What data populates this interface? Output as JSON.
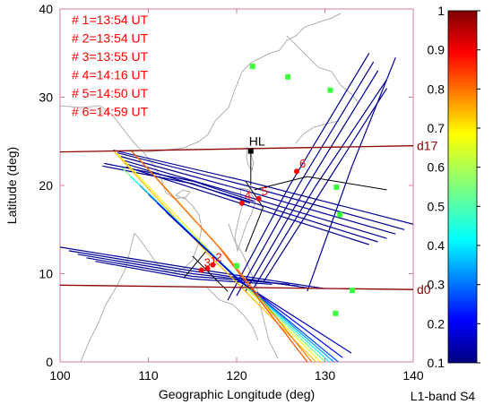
{
  "chart_data": {
    "type": "scatter",
    "xlabel": "Geographic Longitude (deg)",
    "ylabel": "Latitude (deg)",
    "xlim": [
      100,
      140
    ],
    "ylim": [
      0,
      40
    ],
    "x_ticks": [
      100,
      110,
      120,
      130,
      140
    ],
    "y_ticks": [
      0,
      10,
      20,
      30,
      40
    ],
    "grid": false,
    "colorbar": {
      "label": "L1-band S4",
      "range": [
        0.1,
        1
      ],
      "ticks": [
        0.1,
        0.2,
        0.3,
        0.4,
        0.5,
        0.6,
        0.7,
        0.8,
        0.9,
        1
      ],
      "tick_labels": [
        "0.1",
        "0.2",
        "0.3",
        "0.4",
        "0.5",
        "0.6",
        "0.7",
        "0.8",
        "0.9",
        "1"
      ],
      "colormap": "jet"
    },
    "event_legend": [
      "# 1=13:54 UT",
      "# 2=13:54 UT",
      "# 3=13:55 UT",
      "# 4=14:16 UT",
      "# 5=14:50 UT",
      "# 6=14:59 UT"
    ],
    "event_markers": [
      {
        "label": "1",
        "lon": 116.7,
        "lat": 10.6
      },
      {
        "label": "2",
        "lon": 117.3,
        "lat": 11.0
      },
      {
        "label": "3",
        "lon": 116.0,
        "lat": 10.4
      },
      {
        "label": "4",
        "lon": 120.6,
        "lat": 18.0
      },
      {
        "label": "5",
        "lon": 122.5,
        "lat": 18.5
      },
      {
        "label": "6",
        "lon": 126.8,
        "lat": 21.6
      }
    ],
    "reference_lines": [
      {
        "label": "d17",
        "points": [
          [
            100,
            23.8
          ],
          [
            140,
            24.5
          ]
        ],
        "color": "#8b0000"
      },
      {
        "label": "d0",
        "points": [
          [
            100,
            8.7
          ],
          [
            140,
            8.2
          ]
        ],
        "color": "#8b0000"
      }
    ],
    "station": {
      "label": "HL",
      "lon": 121.6,
      "lat": 23.9
    },
    "ground_sites": [
      {
        "lon": 121.8,
        "lat": 33.5
      },
      {
        "lon": 125.8,
        "lat": 32.3
      },
      {
        "lon": 130.6,
        "lat": 30.8
      },
      {
        "lon": 131.3,
        "lat": 19.8
      },
      {
        "lon": 131.7,
        "lat": 16.7
      },
      {
        "lon": 133.1,
        "lat": 8.1
      },
      {
        "lon": 131.2,
        "lat": 5.5
      },
      {
        "lon": 120.0,
        "lat": 10.9
      }
    ],
    "series": [
      {
        "group": "north-band",
        "s4": 0.12,
        "points": [
          [
            106.0,
            24.0
          ],
          [
            121.0,
            20.5
          ],
          [
            140.0,
            15.6
          ]
        ]
      },
      {
        "group": "north-band",
        "s4": 0.12,
        "points": [
          [
            106.5,
            23.7
          ],
          [
            121.0,
            20.0
          ],
          [
            139.0,
            15.0
          ]
        ]
      },
      {
        "group": "north-band",
        "s4": 0.12,
        "points": [
          [
            106.8,
            23.3
          ],
          [
            121.0,
            19.4
          ],
          [
            138.0,
            14.5
          ]
        ]
      },
      {
        "group": "north-band",
        "s4": 0.12,
        "points": [
          [
            107.0,
            22.9
          ],
          [
            121.0,
            18.8
          ],
          [
            137.0,
            14.0
          ]
        ]
      },
      {
        "group": "north-band",
        "s4": 0.12,
        "points": [
          [
            107.3,
            22.5
          ],
          [
            121.0,
            18.3
          ],
          [
            136.0,
            13.6
          ]
        ]
      },
      {
        "group": "north-band",
        "s4": 0.12,
        "points": [
          [
            107.5,
            22.1
          ],
          [
            121.0,
            17.8
          ],
          [
            135.0,
            13.3
          ]
        ]
      },
      {
        "group": "north-band",
        "s4": 0.12,
        "points": [
          [
            105.0,
            22.5
          ],
          [
            115.0,
            20.5
          ],
          [
            122.0,
            18.2
          ]
        ]
      },
      {
        "group": "north-band",
        "s4": 0.12,
        "points": [
          [
            104.8,
            22.2
          ],
          [
            115.0,
            20.2
          ],
          [
            121.5,
            18.0
          ]
        ]
      },
      {
        "group": "mid-band",
        "s4": 0.12,
        "points": [
          [
            100.0,
            13.0
          ],
          [
            115.0,
            10.6
          ],
          [
            130.0,
            8.3
          ]
        ]
      },
      {
        "group": "mid-band",
        "s4": 0.12,
        "points": [
          [
            101.0,
            12.6
          ],
          [
            115.0,
            10.3
          ],
          [
            128.0,
            8.4
          ]
        ]
      },
      {
        "group": "mid-band",
        "s4": 0.12,
        "points": [
          [
            102.0,
            12.2
          ],
          [
            115.0,
            10.0
          ],
          [
            127.0,
            8.6
          ]
        ]
      },
      {
        "group": "mid-band",
        "s4": 0.12,
        "points": [
          [
            103.0,
            11.8
          ],
          [
            115.0,
            9.7
          ],
          [
            126.0,
            8.8
          ]
        ]
      },
      {
        "group": "mid-band",
        "s4": 0.12,
        "points": [
          [
            104.0,
            11.4
          ],
          [
            115.0,
            9.4
          ],
          [
            124.0,
            8.8
          ]
        ]
      },
      {
        "group": "ne-band",
        "s4": 0.12,
        "points": [
          [
            119.0,
            7.0
          ],
          [
            126.0,
            20.0
          ],
          [
            135.0,
            35.0
          ]
        ]
      },
      {
        "group": "ne-band",
        "s4": 0.12,
        "points": [
          [
            120.0,
            7.5
          ],
          [
            127.0,
            20.0
          ],
          [
            135.5,
            34.0
          ]
        ]
      },
      {
        "group": "ne-band",
        "s4": 0.12,
        "points": [
          [
            121.0,
            8.0
          ],
          [
            128.0,
            20.0
          ],
          [
            136.0,
            33.0
          ]
        ]
      },
      {
        "group": "ne-band",
        "s4": 0.12,
        "points": [
          [
            122.0,
            8.5
          ],
          [
            129.0,
            20.0
          ],
          [
            137.0,
            32.0
          ]
        ]
      },
      {
        "group": "ne-band",
        "s4": 0.12,
        "points": [
          [
            123.0,
            9.0
          ],
          [
            130.0,
            20.0
          ],
          [
            137.0,
            31.0
          ]
        ]
      },
      {
        "group": "sw-ne-band",
        "s4": 0.12,
        "points": [
          [
            128.0,
            8.0
          ],
          [
            133.0,
            22.0
          ],
          [
            138.0,
            34.5
          ]
        ]
      },
      {
        "group": "diagonal",
        "s4": 0.72,
        "points": [
          [
            106.0,
            24.0
          ],
          [
            117.0,
            12.0
          ],
          [
            129.0,
            0.0
          ]
        ]
      },
      {
        "group": "diagonal",
        "s4": 0.65,
        "points": [
          [
            106.5,
            23.6
          ],
          [
            117.5,
            12.0
          ],
          [
            129.5,
            0.0
          ]
        ]
      },
      {
        "group": "diagonal",
        "s4": 0.55,
        "points": [
          [
            107.0,
            22.0
          ],
          [
            118.0,
            11.5
          ],
          [
            130.0,
            0.0
          ]
        ]
      },
      {
        "group": "diagonal",
        "s4": 0.45,
        "points": [
          [
            108.0,
            21.0
          ],
          [
            118.5,
            11.0
          ],
          [
            130.5,
            0.0
          ]
        ]
      },
      {
        "group": "diagonal",
        "s4": 0.35,
        "points": [
          [
            109.0,
            20.0
          ],
          [
            119.0,
            10.5
          ],
          [
            131.0,
            0.0
          ]
        ]
      },
      {
        "group": "diagonal",
        "s4": 0.28,
        "points": [
          [
            110.0,
            19.0
          ],
          [
            119.5,
            10.0
          ],
          [
            131.5,
            0.0
          ]
        ]
      },
      {
        "group": "diagonal",
        "s4": 0.22,
        "points": [
          [
            111.0,
            18.0
          ],
          [
            120.0,
            9.5
          ],
          [
            132.0,
            0.5
          ]
        ]
      },
      {
        "group": "diagonal",
        "s4": 0.15,
        "points": [
          [
            112.0,
            17.0
          ],
          [
            120.5,
            9.0
          ],
          [
            133.0,
            1.0
          ]
        ]
      },
      {
        "group": "diagonal-orange",
        "s4": 0.82,
        "points": [
          [
            108.0,
            24.0
          ],
          [
            118.0,
            13.0
          ],
          [
            128.0,
            0.0
          ]
        ]
      },
      {
        "group": "diagonal-orange",
        "s4": 0.78,
        "points": [
          [
            108.5,
            23.5
          ],
          [
            118.5,
            12.5
          ],
          [
            128.5,
            0.0
          ]
        ]
      }
    ],
    "traces_black": [
      {
        "points": [
          [
            115.0,
            12.0
          ],
          [
            117.0,
            10.0
          ],
          [
            119.0,
            8.0
          ]
        ]
      },
      {
        "points": [
          [
            116.5,
            12.5
          ],
          [
            114.0,
            9.5
          ]
        ]
      },
      {
        "points": [
          [
            121.0,
            12.5
          ],
          [
            123.0,
            17.5
          ],
          [
            121.0,
            20.5
          ]
        ]
      },
      {
        "points": [
          [
            122.0,
            19.5
          ],
          [
            128.0,
            21.0
          ],
          [
            137.0,
            19.5
          ]
        ]
      },
      {
        "points": [
          [
            121.6,
            23.9
          ],
          [
            121.6,
            20.0
          ]
        ]
      }
    ]
  }
}
